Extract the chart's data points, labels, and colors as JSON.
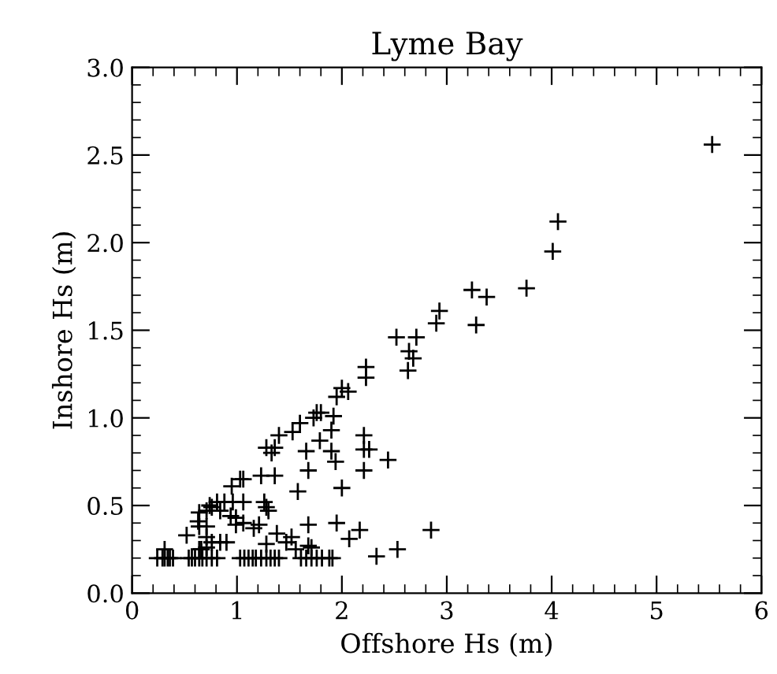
{
  "chart_data": {
    "type": "scatter",
    "title": "Lyme Bay",
    "xlabel": "Offshore Hs (m)",
    "ylabel": "Inshore Hs (m)",
    "marker": "cross",
    "grid": false,
    "legend": false,
    "xlim": [
      0,
      6
    ],
    "ylim": [
      0,
      3.0
    ],
    "xticks": [
      0,
      1,
      2,
      3,
      4,
      5,
      6
    ],
    "yticks": [
      {
        "value": 0,
        "label": "0.0"
      },
      {
        "value": 0.5,
        "label": "0.5"
      },
      {
        "value": 1,
        "label": "1.0"
      },
      {
        "value": 1.5,
        "label": "1.5"
      },
      {
        "value": 2,
        "label": "2.0"
      },
      {
        "value": 2.5,
        "label": "2.5"
      },
      {
        "value": 3,
        "label": "3.0"
      }
    ],
    "series": [
      {
        "color": "#000000",
        "x": [
          5.53,
          4.06,
          4.01,
          3.76,
          3.24,
          3.38,
          3.28,
          2.93,
          2.9,
          2.52,
          2.71,
          2.64,
          2.68,
          2.63,
          2.23,
          2.23,
          2.06,
          2.0,
          1.95,
          1.8,
          1.92,
          1.9,
          1.79,
          1.9,
          1.94,
          2.21,
          2.21,
          2.26,
          2.21,
          2.44,
          2.0,
          1.95,
          2.17,
          2.07,
          2.85,
          2.53,
          2.33,
          1.91,
          1.76,
          1.73,
          1.6,
          1.53,
          1.4,
          1.28,
          1.36,
          1.33,
          1.66,
          1.68,
          1.06,
          1.03,
          1.23,
          1.36,
          1.58,
          0.95,
          0.81,
          0.88,
          0.96,
          1.06,
          0.74,
          0.76,
          0.64,
          0.71,
          0.84,
          0.99,
          0.94,
          1.26,
          1.28,
          1.3,
          0.63,
          0.64,
          0.71,
          0.99,
          1.06,
          1.16,
          1.21,
          0.52,
          0.71,
          0.76,
          0.84,
          0.9,
          0.66,
          0.64,
          0.71,
          1.56,
          1.52,
          1.38,
          1.28,
          1.47,
          1.68,
          1.68,
          1.71,
          0.31,
          0.24,
          0.29,
          0.31,
          0.34,
          0.36,
          0.39,
          0.54,
          0.57,
          0.6,
          0.64,
          0.67,
          0.71,
          0.76,
          0.81,
          1.03,
          1.07,
          1.11,
          1.15,
          1.18,
          1.23,
          1.28,
          1.32,
          1.36,
          1.4,
          1.61,
          1.66,
          1.71,
          1.76,
          1.81,
          1.88
        ],
        "values": [
          2.56,
          2.12,
          1.95,
          1.74,
          1.73,
          1.69,
          1.53,
          1.61,
          1.54,
          1.46,
          1.46,
          1.38,
          1.34,
          1.27,
          1.29,
          1.23,
          1.15,
          1.17,
          1.12,
          1.03,
          1.01,
          0.93,
          0.87,
          0.81,
          0.75,
          0.9,
          0.82,
          0.82,
          0.7,
          0.76,
          0.6,
          0.4,
          0.36,
          0.31,
          0.36,
          0.25,
          0.21,
          0.2,
          1.03,
          1.0,
          0.97,
          0.92,
          0.9,
          0.83,
          0.83,
          0.8,
          0.81,
          0.7,
          0.65,
          0.65,
          0.67,
          0.67,
          0.58,
          0.61,
          0.52,
          0.52,
          0.52,
          0.52,
          0.5,
          0.49,
          0.46,
          0.47,
          0.47,
          0.43,
          0.44,
          0.52,
          0.49,
          0.47,
          0.41,
          0.38,
          0.38,
          0.39,
          0.4,
          0.37,
          0.39,
          0.33,
          0.32,
          0.29,
          0.29,
          0.29,
          0.25,
          0.25,
          0.26,
          0.25,
          0.32,
          0.34,
          0.28,
          0.29,
          0.39,
          0.27,
          0.26,
          0.25,
          0.2,
          0.2,
          0.2,
          0.2,
          0.2,
          0.2,
          0.2,
          0.2,
          0.2,
          0.2,
          0.2,
          0.2,
          0.2,
          0.2,
          0.2,
          0.2,
          0.2,
          0.2,
          0.2,
          0.2,
          0.2,
          0.2,
          0.2,
          0.2,
          0.2,
          0.2,
          0.2,
          0.2,
          0.2,
          0.2
        ]
      }
    ]
  }
}
